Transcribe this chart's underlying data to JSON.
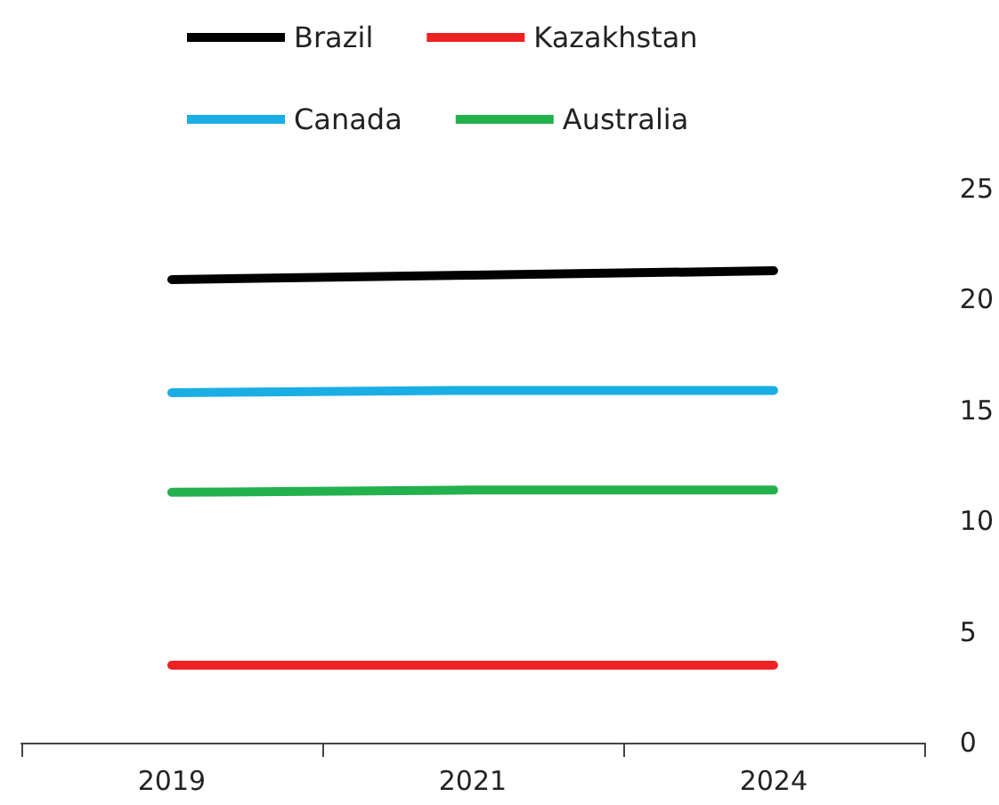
{
  "chart_data": {
    "type": "line",
    "categories": [
      "2019",
      "2021",
      "2024"
    ],
    "series": [
      {
        "name": "Brazil",
        "color": "#000000",
        "values": [
          20.9,
          21.1,
          21.3
        ]
      },
      {
        "name": "Kazakhstan",
        "color": "#ee2224",
        "values": [
          3.5,
          3.5,
          3.5
        ]
      },
      {
        "name": "Canada",
        "color": "#1aaee5",
        "values": [
          15.8,
          15.9,
          15.9
        ]
      },
      {
        "name": "Australia",
        "color": "#23b14d",
        "values": [
          11.3,
          11.4,
          11.4
        ]
      }
    ],
    "ylim": [
      0,
      25
    ],
    "yticks": [
      0,
      5,
      10,
      15,
      20,
      25
    ],
    "grid": false,
    "legend": "top",
    "marker": "none"
  }
}
